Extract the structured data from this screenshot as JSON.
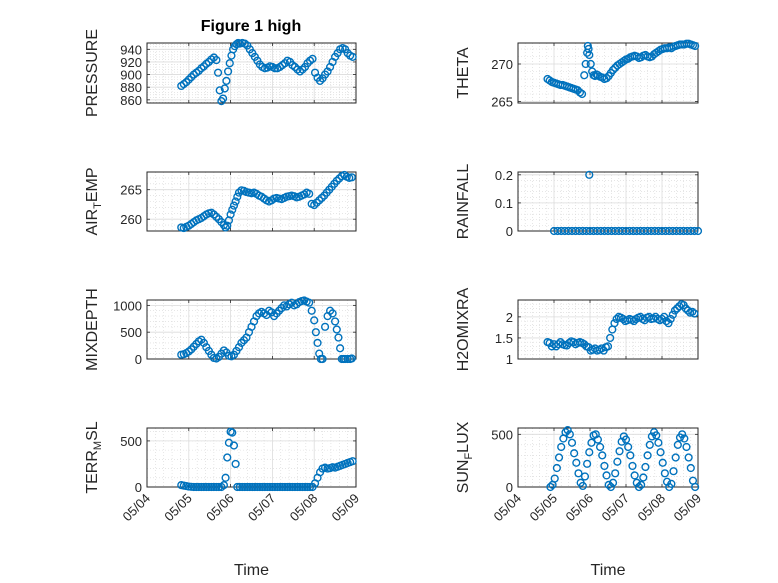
{
  "figure": {
    "title": "Figure 1 high",
    "marker_color": "#0072bd"
  },
  "chart_data": [
    {
      "type": "scatter",
      "ylabel": "PRESSURE",
      "xlabel": "",
      "title": "Figure 1 high",
      "xlim": [
        0,
        5
      ],
      "ylim": [
        855,
        950
      ],
      "yticks": [
        860,
        880,
        900,
        920,
        940
      ],
      "yticklabels": [
        "860",
        "880",
        "900",
        "920",
        "940"
      ],
      "grid": true,
      "minor_grid": true,
      "x": [
        0.82,
        0.88,
        0.94,
        1.0,
        1.06,
        1.12,
        1.18,
        1.24,
        1.3,
        1.36,
        1.42,
        1.48,
        1.54,
        1.6,
        1.66,
        1.7,
        1.74,
        1.78,
        1.82,
        1.86,
        1.9,
        1.94,
        1.98,
        2.02,
        2.06,
        2.1,
        2.14,
        2.18,
        2.22,
        2.28,
        2.34,
        2.4,
        2.46,
        2.52,
        2.58,
        2.64,
        2.7,
        2.76,
        2.82,
        2.88,
        2.94,
        3.0,
        3.06,
        3.12,
        3.18,
        3.24,
        3.3,
        3.36,
        3.42,
        3.48,
        3.54,
        3.6,
        3.66,
        3.72,
        3.78,
        3.84,
        3.9,
        3.96,
        4.02,
        4.08,
        4.14,
        4.2,
        4.26,
        4.32,
        4.38,
        4.44,
        4.5,
        4.56,
        4.62,
        4.68,
        4.74,
        4.8,
        4.86,
        4.92
      ],
      "y": [
        882,
        885,
        888,
        892,
        896,
        900,
        903,
        906,
        910,
        913,
        917,
        920,
        924,
        927,
        923,
        903,
        875,
        858,
        862,
        878,
        890,
        905,
        918,
        930,
        940,
        945,
        948,
        950,
        949,
        950,
        949,
        946,
        940,
        934,
        928,
        922,
        916,
        912,
        910,
        911,
        913,
        912,
        910,
        910,
        912,
        915,
        918,
        922,
        920,
        915,
        912,
        908,
        905,
        908,
        912,
        918,
        922,
        925,
        903,
        895,
        890,
        894,
        900,
        905,
        912,
        920,
        928,
        934,
        940,
        942,
        940,
        934,
        930,
        928
      ]
    },
    {
      "type": "scatter",
      "ylabel": "THETA",
      "xlabel": "",
      "xlim": [
        0,
        5
      ],
      "ylim": [
        264.8,
        272.8
      ],
      "yticks": [
        265,
        270
      ],
      "yticklabels": [
        "265",
        "270"
      ],
      "grid": true,
      "minor_grid": true,
      "x": [
        0.82,
        0.88,
        0.94,
        1.0,
        1.06,
        1.12,
        1.18,
        1.24,
        1.3,
        1.36,
        1.42,
        1.48,
        1.54,
        1.6,
        1.66,
        1.72,
        1.78,
        1.84,
        1.88,
        1.92,
        1.94,
        1.96,
        1.98,
        2.02,
        2.06,
        2.1,
        2.14,
        2.18,
        2.22,
        2.28,
        2.34,
        2.4,
        2.46,
        2.52,
        2.58,
        2.64,
        2.7,
        2.76,
        2.82,
        2.88,
        2.94,
        3.0,
        3.06,
        3.12,
        3.18,
        3.24,
        3.3,
        3.36,
        3.42,
        3.48,
        3.54,
        3.6,
        3.66,
        3.72,
        3.78,
        3.84,
        3.9,
        3.96,
        4.02,
        4.08,
        4.14,
        4.2,
        4.26,
        4.32,
        4.38,
        4.44,
        4.5,
        4.56,
        4.62,
        4.68,
        4.74,
        4.8,
        4.86,
        4.92
      ],
      "y": [
        268.0,
        267.8,
        267.6,
        267.5,
        267.4,
        267.3,
        267.2,
        267.2,
        267.1,
        267.0,
        266.9,
        266.8,
        266.7,
        266.6,
        266.5,
        266.2,
        266.0,
        268.5,
        270.0,
        271.5,
        272.4,
        272.0,
        271.2,
        270.0,
        269.0,
        268.5,
        268.4,
        268.6,
        268.5,
        268.3,
        268.2,
        268.0,
        268.1,
        268.4,
        268.8,
        269.2,
        269.5,
        269.8,
        270.0,
        270.2,
        270.4,
        270.6,
        270.7,
        270.9,
        271.0,
        271.1,
        271.0,
        270.8,
        270.9,
        271.1,
        271.2,
        271.0,
        270.9,
        271.0,
        271.3,
        271.5,
        271.7,
        271.9,
        272.0,
        272.1,
        272.1,
        272.2,
        272.1,
        272.3,
        272.4,
        272.5,
        272.6,
        272.6,
        272.6,
        272.7,
        272.7,
        272.6,
        272.5,
        272.4
      ]
    },
    {
      "type": "scatter",
      "ylabel": "AIR_TEMP",
      "xlabel": "",
      "xlim": [
        0,
        5
      ],
      "ylim": [
        258,
        268
      ],
      "yticks": [
        260,
        265
      ],
      "yticklabels": [
        "260",
        "265"
      ],
      "grid": true,
      "minor_grid": true,
      "x": [
        0.82,
        0.88,
        0.94,
        1.0,
        1.06,
        1.12,
        1.18,
        1.24,
        1.3,
        1.36,
        1.42,
        1.48,
        1.54,
        1.6,
        1.66,
        1.72,
        1.78,
        1.84,
        1.88,
        1.92,
        1.96,
        2.0,
        2.04,
        2.08,
        2.12,
        2.16,
        2.2,
        2.26,
        2.32,
        2.38,
        2.44,
        2.5,
        2.56,
        2.62,
        2.68,
        2.74,
        2.8,
        2.86,
        2.92,
        2.98,
        3.04,
        3.1,
        3.16,
        3.22,
        3.28,
        3.34,
        3.4,
        3.46,
        3.52,
        3.58,
        3.64,
        3.7,
        3.76,
        3.82,
        3.88,
        3.94,
        4.0,
        4.06,
        4.12,
        4.18,
        4.24,
        4.3,
        4.36,
        4.42,
        4.48,
        4.54,
        4.6,
        4.66,
        4.72,
        4.78,
        4.84,
        4.9
      ],
      "y": [
        258.6,
        258.5,
        258.7,
        258.9,
        259.2,
        259.5,
        259.8,
        260.0,
        260.2,
        260.5,
        260.8,
        261.0,
        261.1,
        260.8,
        260.4,
        260.0,
        259.5,
        259.0,
        258.6,
        258.9,
        259.8,
        260.8,
        261.6,
        262.3,
        263.0,
        263.8,
        264.5,
        264.9,
        264.8,
        264.6,
        264.5,
        264.4,
        264.5,
        264.3,
        264.0,
        263.8,
        263.5,
        263.2,
        263.0,
        263.2,
        263.5,
        263.6,
        263.5,
        263.4,
        263.6,
        263.8,
        263.9,
        264.0,
        263.9,
        263.7,
        263.8,
        264.0,
        264.2,
        264.5,
        264.3,
        262.6,
        262.4,
        262.8,
        263.2,
        263.6,
        264.0,
        264.5,
        265.0,
        265.5,
        266.0,
        266.5,
        266.9,
        267.3,
        267.5,
        267.2,
        267.0,
        267.1
      ]
    },
    {
      "type": "scatter",
      "ylabel": "RAINFALL",
      "xlabel": "",
      "xlim": [
        0,
        5
      ],
      "ylim": [
        0,
        0.21
      ],
      "yticks": [
        0,
        0.1,
        0.2
      ],
      "yticklabels": [
        "0",
        "0.1",
        "0.2"
      ],
      "grid": true,
      "minor_grid": true,
      "x": [
        1.0,
        1.1,
        1.2,
        1.3,
        1.4,
        1.5,
        1.6,
        1.7,
        1.8,
        1.9,
        2.0,
        2.1,
        2.2,
        2.3,
        2.4,
        2.5,
        2.6,
        2.7,
        2.8,
        2.9,
        3.0,
        3.1,
        3.2,
        3.3,
        3.4,
        3.5,
        3.6,
        3.7,
        3.8,
        3.9,
        4.0,
        4.1,
        4.2,
        4.3,
        4.4,
        4.5,
        4.6,
        4.7,
        4.8,
        4.9,
        5.0
      ],
      "y": [
        0,
        0,
        0,
        0,
        0,
        0,
        0,
        0,
        0,
        0,
        0,
        0,
        0,
        0,
        0,
        0,
        0,
        0,
        0,
        0,
        0,
        0,
        0,
        0,
        0,
        0,
        0,
        0,
        0,
        0,
        0,
        0,
        0,
        0,
        0,
        0,
        0,
        0,
        0,
        0,
        0
      ],
      "extra_points": [
        [
          1.98,
          0.2
        ]
      ]
    },
    {
      "type": "scatter",
      "ylabel": "MIXDEPTH",
      "xlabel": "",
      "xlim": [
        0,
        5
      ],
      "ylim": [
        0,
        1100
      ],
      "yticks": [
        0,
        500,
        1000
      ],
      "yticklabels": [
        "0",
        "500",
        "1000"
      ],
      "grid": true,
      "minor_grid": true,
      "x": [
        0.82,
        0.88,
        0.94,
        1.0,
        1.06,
        1.12,
        1.18,
        1.24,
        1.3,
        1.36,
        1.42,
        1.48,
        1.54,
        1.6,
        1.66,
        1.72,
        1.78,
        1.84,
        1.9,
        1.96,
        2.02,
        2.08,
        2.14,
        2.2,
        2.26,
        2.32,
        2.38,
        2.44,
        2.5,
        2.56,
        2.62,
        2.68,
        2.74,
        2.8,
        2.86,
        2.92,
        2.98,
        3.04,
        3.1,
        3.16,
        3.22,
        3.28,
        3.34,
        3.4,
        3.46,
        3.52,
        3.58,
        3.64,
        3.7,
        3.76,
        3.82,
        3.88,
        3.94,
        4.0,
        4.04,
        4.08,
        4.12,
        4.16,
        4.2,
        4.26,
        4.32,
        4.38,
        4.44,
        4.5,
        4.54,
        4.58,
        4.62,
        4.66,
        4.7,
        4.74,
        4.8,
        4.86,
        4.9
      ],
      "y": [
        80,
        90,
        110,
        140,
        180,
        230,
        280,
        330,
        360,
        300,
        220,
        150,
        80,
        20,
        10,
        40,
        100,
        160,
        120,
        60,
        50,
        80,
        150,
        220,
        300,
        350,
        400,
        500,
        600,
        700,
        800,
        850,
        880,
        850,
        820,
        900,
        870,
        800,
        850,
        900,
        950,
        1000,
        980,
        1020,
        1050,
        1000,
        1020,
        1060,
        1080,
        1090,
        1070,
        1050,
        900,
        720,
        500,
        300,
        100,
        0,
        0,
        600,
        800,
        900,
        850,
        700,
        550,
        400,
        200,
        0,
        0,
        0,
        0,
        0,
        10
      ]
    },
    {
      "type": "scatter",
      "ylabel": "H2OMIXRA",
      "xlabel": "",
      "xlim": [
        0,
        5
      ],
      "ylim": [
        1,
        2.4
      ],
      "yticks": [
        1,
        1.5,
        2
      ],
      "yticklabels": [
        "1",
        "1.5",
        "2"
      ],
      "grid": true,
      "minor_grid": true,
      "x": [
        0.82,
        0.88,
        0.94,
        1.0,
        1.06,
        1.12,
        1.18,
        1.24,
        1.3,
        1.36,
        1.42,
        1.48,
        1.54,
        1.6,
        1.66,
        1.72,
        1.78,
        1.84,
        1.9,
        1.96,
        2.02,
        2.08,
        2.14,
        2.2,
        2.26,
        2.32,
        2.38,
        2.44,
        2.5,
        2.56,
        2.62,
        2.68,
        2.74,
        2.8,
        2.86,
        2.92,
        2.98,
        3.04,
        3.1,
        3.16,
        3.22,
        3.28,
        3.34,
        3.4,
        3.46,
        3.52,
        3.58,
        3.64,
        3.7,
        3.76,
        3.82,
        3.88,
        3.94,
        4.0,
        4.06,
        4.12,
        4.18,
        4.24,
        4.3,
        4.36,
        4.42,
        4.48,
        4.54,
        4.6,
        4.66,
        4.72,
        4.78,
        4.84,
        4.9
      ],
      "y": [
        1.4,
        1.38,
        1.3,
        1.35,
        1.3,
        1.35,
        1.4,
        1.35,
        1.33,
        1.32,
        1.38,
        1.42,
        1.4,
        1.35,
        1.38,
        1.4,
        1.38,
        1.35,
        1.3,
        1.28,
        1.2,
        1.22,
        1.25,
        1.2,
        1.22,
        1.25,
        1.2,
        1.28,
        1.3,
        1.5,
        1.7,
        1.85,
        1.95,
        2.0,
        1.98,
        1.95,
        1.9,
        1.92,
        1.95,
        1.93,
        1.9,
        1.95,
        1.98,
        2.0,
        1.95,
        1.92,
        1.98,
        2.0,
        1.95,
        1.96,
        2.0,
        1.95,
        1.92,
        1.95,
        2.0,
        1.9,
        1.85,
        1.95,
        2.05,
        2.15,
        2.2,
        2.25,
        2.3,
        2.28,
        2.2,
        2.15,
        2.1,
        2.12,
        2.08
      ]
    },
    {
      "type": "scatter",
      "ylabel": "TERR_MSL",
      "xlabel": "Time",
      "xlim": [
        0,
        5
      ],
      "ylim": [
        0,
        640
      ],
      "yticks": [
        0,
        500
      ],
      "yticklabels": [
        "0",
        "500"
      ],
      "xticklabels": [
        "05/04",
        "05/05",
        "05/06",
        "05/07",
        "05/08",
        "05/09"
      ],
      "grid": true,
      "minor_grid": true,
      "x": [
        0.82,
        0.88,
        0.94,
        1.0,
        1.06,
        1.12,
        1.18,
        1.24,
        1.3,
        1.36,
        1.42,
        1.48,
        1.54,
        1.6,
        1.66,
        1.72,
        1.78,
        1.84,
        1.88,
        1.92,
        1.96,
        2.0,
        2.04,
        2.08,
        2.12,
        2.16,
        2.22,
        2.28,
        2.34,
        2.4,
        2.46,
        2.52,
        2.58,
        2.64,
        2.7,
        2.76,
        2.82,
        2.88,
        2.94,
        3.0,
        3.06,
        3.12,
        3.18,
        3.24,
        3.3,
        3.36,
        3.42,
        3.48,
        3.54,
        3.6,
        3.66,
        3.72,
        3.78,
        3.84,
        3.9,
        3.96,
        4.02,
        4.08,
        4.14,
        4.2,
        4.26,
        4.32,
        4.38,
        4.44,
        4.5,
        4.56,
        4.62,
        4.68,
        4.74,
        4.8,
        4.86,
        4.92
      ],
      "y": [
        20,
        15,
        10,
        5,
        2,
        0,
        0,
        0,
        0,
        0,
        0,
        0,
        0,
        0,
        0,
        0,
        0,
        20,
        100,
        320,
        480,
        600,
        590,
        450,
        250,
        0,
        0,
        0,
        0,
        0,
        0,
        0,
        0,
        0,
        0,
        0,
        0,
        0,
        0,
        0,
        0,
        0,
        0,
        0,
        0,
        0,
        0,
        0,
        0,
        0,
        0,
        0,
        0,
        0,
        0,
        0,
        40,
        100,
        160,
        200,
        210,
        200,
        205,
        215,
        210,
        220,
        230,
        240,
        250,
        260,
        270,
        280
      ]
    },
    {
      "type": "scatter",
      "ylabel": "SUN_FLUX",
      "xlabel": "Time",
      "xlim": [
        0,
        5
      ],
      "ylim": [
        0,
        560
      ],
      "yticks": [
        0,
        500
      ],
      "yticklabels": [
        "0",
        "500"
      ],
      "xticklabels": [
        "05/04",
        "05/05",
        "05/06",
        "05/07",
        "05/08",
        "05/09"
      ],
      "grid": true,
      "minor_grid": true,
      "x": [
        0.9,
        0.96,
        1.02,
        1.08,
        1.14,
        1.2,
        1.26,
        1.32,
        1.38,
        1.44,
        1.5,
        1.56,
        1.62,
        1.68,
        1.74,
        1.8,
        1.86,
        1.92,
        1.98,
        2.04,
        2.1,
        2.16,
        2.22,
        2.28,
        2.34,
        2.4,
        2.46,
        2.52,
        2.58,
        2.64,
        2.7,
        2.76,
        2.82,
        2.88,
        2.94,
        3.0,
        3.06,
        3.12,
        3.18,
        3.24,
        3.3,
        3.36,
        3.42,
        3.48,
        3.54,
        3.6,
        3.66,
        3.72,
        3.78,
        3.84,
        3.9,
        3.96,
        4.02,
        4.08,
        4.14,
        4.2,
        4.26,
        4.32,
        4.38,
        4.44,
        4.5,
        4.56,
        4.62,
        4.68,
        4.74,
        4.8,
        4.86,
        4.92
      ],
      "y": [
        0,
        20,
        80,
        180,
        280,
        380,
        460,
        520,
        540,
        500,
        420,
        320,
        230,
        130,
        40,
        10,
        100,
        220,
        330,
        420,
        490,
        500,
        450,
        380,
        300,
        200,
        110,
        20,
        0,
        40,
        130,
        240,
        340,
        430,
        480,
        450,
        380,
        300,
        200,
        110,
        40,
        0,
        20,
        90,
        190,
        300,
        400,
        480,
        520,
        490,
        420,
        330,
        230,
        130,
        50,
        0,
        30,
        150,
        280,
        400,
        470,
        500,
        460,
        380,
        280,
        180,
        60,
        0
      ]
    }
  ]
}
